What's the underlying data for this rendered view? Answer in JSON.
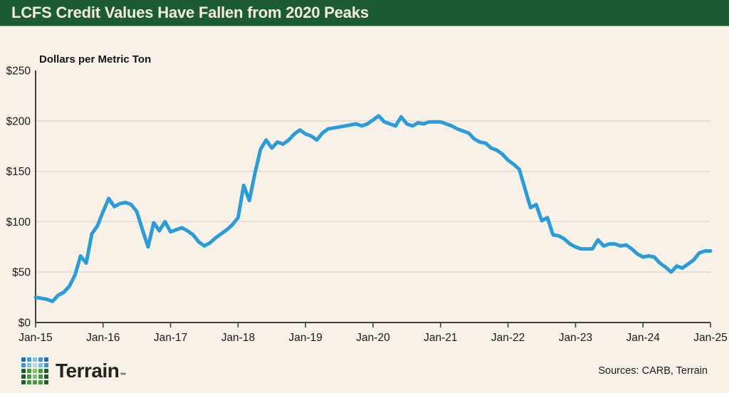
{
  "colors": {
    "header_bg": "#1d5c33",
    "header_text": "#f4eee1",
    "background": "#f7f1e8",
    "line": "#2b9cd8",
    "axis": "#3f3f3f",
    "grid": "#dedace"
  },
  "header": {
    "title": "LCFS Credit Values Have Fallen from 2020 Peaks"
  },
  "chart_data": {
    "type": "line",
    "title": "Dollars per Metric Ton",
    "ylabel": "Dollars per Metric Ton",
    "xlabel": "",
    "ylim": [
      0,
      250
    ],
    "grid": "horizontal",
    "legend_position": "none",
    "y_tick_values": [
      0,
      50,
      100,
      150,
      200,
      250
    ],
    "y_tick_labels": [
      "$0",
      "$50",
      "$100",
      "$150",
      "$200",
      "$250"
    ],
    "grid_values": [
      50,
      100,
      150,
      200
    ],
    "x_tick_labels": [
      "Jan-15",
      "Jan-16",
      "Jan-17",
      "Jan-18",
      "Jan-19",
      "Jan-20",
      "Jan-21",
      "Jan-22",
      "Jan-23",
      "Jan-24",
      "Jan-25"
    ],
    "x_start": "Jan-2015",
    "x_end": "Jan-2025",
    "frequency": "monthly",
    "series": [
      {
        "name": "LCFS credit value (dollars per metric ton)",
        "values": [
          25,
          24,
          23,
          21,
          27,
          30,
          36,
          47,
          66,
          59,
          88,
          96,
          110,
          123,
          115,
          118,
          119,
          117,
          110,
          92,
          75,
          99,
          91,
          100,
          90,
          92,
          94,
          91,
          87,
          80,
          76,
          79,
          84,
          88,
          92,
          97,
          104,
          136,
          121,
          148,
          172,
          181,
          173,
          179,
          177,
          181,
          187,
          191,
          187,
          185,
          181,
          188,
          192,
          193,
          194,
          195,
          196,
          197,
          195,
          197,
          201,
          205,
          199,
          197,
          195,
          204,
          197,
          195,
          198,
          197,
          199,
          199,
          199,
          197,
          195,
          192,
          190,
          188,
          182,
          179,
          178,
          173,
          171,
          167,
          161,
          157,
          152,
          133,
          114,
          117,
          101,
          104,
          87,
          86,
          83,
          78,
          75,
          73,
          73,
          73,
          82,
          76,
          78,
          78,
          76,
          77,
          73,
          68,
          65,
          66,
          65,
          59,
          55,
          50,
          56,
          54,
          58,
          62,
          69,
          71,
          71
        ]
      }
    ]
  },
  "footer": {
    "brand": "Terrain",
    "trademark": "™",
    "sources": "Sources: CARB, Terrain",
    "logo_colors": [
      [
        "#1b6db4",
        "#3b97d6",
        "#7ec2e8",
        "#3b97d6",
        "#1b6db4"
      ],
      [
        "#3b97d6",
        "#7ec2e8",
        "#b5dcf2",
        "#7ec2e8",
        "#3b97d6"
      ],
      [
        "#1d5c2f",
        "#3f9b44",
        "#7cc46c",
        "#3f9b44",
        "#1d5c2f"
      ],
      [
        "#1d5c2f",
        "#3f9b44",
        "#7cc46c",
        "#3f9b44",
        "#1d5c2f"
      ],
      [
        "#1d5c2f",
        "#3f9b44",
        "#3f9b44",
        "#3f9b44",
        "#1d5c2f"
      ]
    ]
  }
}
